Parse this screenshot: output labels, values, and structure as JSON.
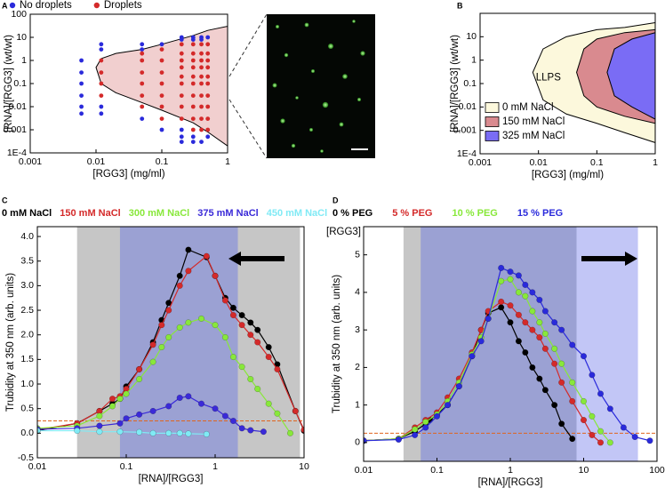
{
  "chart_data": [
    {
      "type": "scatter",
      "label": "A",
      "xlabel": "[RGG3] (mg/ml)",
      "ylabel": "[RNA]/[RGG3] (wt/wt)",
      "xlog": true,
      "ylog": true,
      "xlim": [
        0.001,
        1
      ],
      "ylim": [
        0.0001,
        100
      ],
      "xticks": [
        0.001,
        0.01,
        0.1,
        1
      ],
      "yticks": [
        {
          "value": 0.0001,
          "label": "1E-4"
        },
        0.001,
        0.01,
        0.1,
        1,
        10,
        100
      ],
      "boundary": {
        "color": "#f1cfcf",
        "x": [
          1,
          0.5,
          0.3,
          0.1,
          0.05,
          0.02,
          0.012,
          0.01,
          0.012,
          0.02,
          0.05,
          0.1,
          0.3,
          0.5,
          1
        ],
        "values": [
          30,
          20,
          12,
          5,
          3,
          2,
          1.2,
          0.5,
          0.1,
          0.04,
          0.015,
          0.007,
          0.002,
          0.0008,
          0.0002
        ]
      },
      "series": [
        {
          "name": "No droplets",
          "color": "#2a2adb",
          "x": [
            0.006,
            0.006,
            0.006,
            0.006,
            0.006,
            0.006,
            0.012,
            0.012,
            0.012,
            0.012,
            0.05,
            0.05,
            0.05,
            0.1,
            0.1,
            0.2,
            0.2,
            0.2,
            0.2,
            0.2,
            0.3,
            0.3,
            0.3,
            0.3,
            0.4,
            0.4,
            0.4,
            0.5,
            0.5
          ],
          "values": [
            1,
            0.3,
            0.1,
            0.03,
            0.01,
            0.005,
            5,
            3,
            0.01,
            0.005,
            5,
            3,
            0.003,
            5,
            0.001,
            10,
            8,
            0.001,
            0.0005,
            0.0003,
            10,
            8,
            0.0005,
            0.0003,
            10,
            8,
            0.0003,
            10,
            0.0005
          ]
        },
        {
          "name": "Droplets",
          "color": "#d42a2a",
          "x": [
            0.012,
            0.012,
            0.012,
            0.012,
            0.05,
            0.05,
            0.05,
            0.05,
            0.05,
            0.05,
            0.1,
            0.1,
            0.1,
            0.1,
            0.1,
            0.1,
            0.1,
            0.2,
            0.2,
            0.2,
            0.2,
            0.2,
            0.2,
            0.2,
            0.2,
            0.2,
            0.3,
            0.3,
            0.3,
            0.3,
            0.3,
            0.3,
            0.3,
            0.3,
            0.3,
            0.3,
            0.4,
            0.4,
            0.4,
            0.4,
            0.4,
            0.4,
            0.4,
            0.4,
            0.4,
            0.4,
            0.5,
            0.5,
            0.5,
            0.5,
            0.5,
            0.5,
            0.5,
            0.5,
            0.5,
            0.5
          ],
          "values": [
            1,
            0.3,
            0.1,
            0.03,
            2,
            1,
            0.3,
            0.1,
            0.03,
            0.01,
            3,
            1,
            0.3,
            0.1,
            0.03,
            0.01,
            0.003,
            5,
            2,
            1,
            0.5,
            0.2,
            0.1,
            0.03,
            0.01,
            0.003,
            5,
            2,
            1,
            0.5,
            0.2,
            0.1,
            0.03,
            0.01,
            0.003,
            0.001,
            5,
            2,
            1,
            0.5,
            0.2,
            0.1,
            0.03,
            0.01,
            0.003,
            0.001,
            5,
            2,
            1,
            0.5,
            0.2,
            0.1,
            0.03,
            0.01,
            0.003,
            0.001
          ]
        }
      ]
    },
    {
      "type": "area",
      "label": "B",
      "xlabel": "[RGG3] (mg/ml)",
      "ylabel": "[RNA]/[RGG3] (wt/wt)",
      "annotation": "LLPS",
      "xlog": true,
      "ylog": true,
      "xlim": [
        0.001,
        1
      ],
      "ylim": [
        0.0001,
        100
      ],
      "xticks": [
        0.001,
        0.01,
        0.1,
        1
      ],
      "yticks": [
        {
          "value": 0.0001,
          "label": "1E-4"
        },
        0.001,
        0.01,
        0.1,
        1,
        10
      ],
      "series": [
        {
          "name": "0 mM NaCl",
          "color": "#fcf8dc",
          "x": [
            1,
            0.3,
            0.1,
            0.03,
            0.012,
            0.008,
            0.012,
            0.03,
            0.1,
            0.3,
            1
          ],
          "values": [
            40,
            25,
            20,
            10,
            3,
            0.3,
            0.02,
            0.005,
            0.002,
            0.0008,
            0.0003
          ]
        },
        {
          "name": "150 mM NaCl",
          "color": "#d98a8f",
          "x": [
            1,
            0.3,
            0.1,
            0.06,
            0.045,
            0.06,
            0.1,
            0.3,
            1
          ],
          "values": [
            20,
            15,
            8,
            3,
            0.3,
            0.03,
            0.01,
            0.004,
            0.002
          ]
        },
        {
          "name": "325 mM NaCl",
          "color": "#7a6cf5",
          "x": [
            1,
            0.4,
            0.2,
            0.15,
            0.2,
            0.4,
            1
          ],
          "values": [
            15,
            8,
            3,
            0.3,
            0.03,
            0.01,
            0.003
          ]
        }
      ]
    },
    {
      "type": "line",
      "label": "C",
      "xlabel": "[RNA]/[RGG3]",
      "ylabel": "Trubidity at 350 nm (arb. units)",
      "xlog": true,
      "ylog": false,
      "xlim": [
        0.01,
        10
      ],
      "ylim": [
        -0.5,
        4.2
      ],
      "xticks": [
        0.01,
        0.1,
        1,
        10
      ],
      "yticks": [
        -0.5,
        {
          "value": 0,
          "label": "0.0"
        },
        0.5,
        {
          "value": 1,
          "label": "1.0"
        },
        1.5,
        {
          "value": 2,
          "label": "2.0"
        },
        2.5,
        {
          "value": 3,
          "label": "3.0"
        },
        3.5,
        {
          "value": 4,
          "label": "4.0"
        }
      ],
      "bands": [
        {
          "from": 0.028,
          "to": 9,
          "color": "#c6c6c6"
        },
        {
          "from": 0.085,
          "to": 1.8,
          "color": "#9ba1d3"
        }
      ],
      "threshold": 0.25,
      "arrow": "left",
      "series": [
        {
          "name": "0 mM NaCl",
          "color": "#000000",
          "x": [
            0.01,
            0.028,
            0.05,
            0.07,
            0.085,
            0.1,
            0.14,
            0.2,
            0.25,
            0.3,
            0.4,
            0.5,
            0.8,
            1,
            1.3,
            1.6,
            2,
            2.5,
            3,
            4,
            5,
            8,
            10
          ],
          "values": [
            0.05,
            0.2,
            0.45,
            0.6,
            0.7,
            0.95,
            1.3,
            1.85,
            2.3,
            2.65,
            3.2,
            3.73,
            3.58,
            3.2,
            2.75,
            2.55,
            2.4,
            2.25,
            2.1,
            1.75,
            1.4,
            0.45,
            0.05
          ]
        },
        {
          "name": "150 mM NaCl",
          "color": "#d42a2a",
          "x": [
            0.01,
            0.028,
            0.05,
            0.07,
            0.085,
            0.1,
            0.14,
            0.2,
            0.25,
            0.3,
            0.4,
            0.5,
            0.8,
            1,
            1.3,
            1.6,
            2,
            2.5,
            3,
            4,
            5,
            8,
            10
          ],
          "values": [
            0.07,
            0.2,
            0.45,
            0.7,
            0.75,
            0.9,
            1.3,
            1.8,
            2.2,
            2.5,
            3,
            3.3,
            3.6,
            3.2,
            2.7,
            2.4,
            2.2,
            2,
            1.85,
            1.55,
            1.3,
            0.45,
            0.07
          ]
        },
        {
          "name": "300 mM NaCl",
          "color": "#88e83a",
          "x": [
            0.01,
            0.028,
            0.05,
            0.07,
            0.085,
            0.1,
            0.14,
            0.2,
            0.25,
            0.3,
            0.4,
            0.5,
            0.7,
            1,
            1.3,
            1.6,
            2,
            2.5,
            3,
            4,
            5,
            7
          ],
          "values": [
            0.1,
            0.15,
            0.35,
            0.55,
            0.7,
            0.8,
            1.1,
            1.45,
            1.75,
            1.95,
            2.15,
            2.25,
            2.33,
            2.2,
            1.95,
            1.55,
            1.35,
            1.1,
            0.9,
            0.6,
            0.4,
            0
          ]
        },
        {
          "name": "375 mM NaCl",
          "color": "#3a2ad8",
          "x": [
            0.01,
            0.028,
            0.05,
            0.085,
            0.1,
            0.14,
            0.2,
            0.3,
            0.4,
            0.5,
            0.7,
            1,
            1.3,
            1.6,
            2,
            2.5,
            3.5
          ],
          "values": [
            0.08,
            0.1,
            0.15,
            0.2,
            0.3,
            0.38,
            0.45,
            0.55,
            0.72,
            0.75,
            0.6,
            0.5,
            0.35,
            0.25,
            0.1,
            0.06,
            0.03
          ]
        },
        {
          "name": "450 mM NaCl",
          "color": "#80eaf5",
          "x": [
            0.01,
            0.028,
            0.05,
            0.085,
            0.14,
            0.2,
            0.3,
            0.4,
            0.5,
            0.8
          ],
          "values": [
            0.05,
            0.05,
            0.03,
            0.03,
            0.02,
            0,
            0,
            0,
            -0.01,
            -0.02
          ]
        }
      ]
    },
    {
      "type": "line",
      "label": "D",
      "xlabel": "[RNA]/[RGG3]",
      "ylabel": "Trubidity at 350 nm (arb. units)",
      "annotation": "[RGG3]",
      "xlog": true,
      "ylog": false,
      "xlim": [
        0.01,
        100
      ],
      "ylim": [
        -0.5,
        5.75
      ],
      "xticks": [
        0.01,
        0.1,
        1,
        10,
        100
      ],
      "yticks": [
        0,
        1,
        2,
        3,
        4,
        5
      ],
      "bands": [
        {
          "from": 0.035,
          "to": 8,
          "color": "#c6c6c6"
        },
        {
          "from": 0.06,
          "to": 8,
          "color": "#9ba1d3"
        },
        {
          "from": 8,
          "to": 55,
          "color": "#c2c6f6"
        }
      ],
      "threshold": 0.25,
      "arrow": "right",
      "series": [
        {
          "name": "0 % PEG",
          "color": "#000000",
          "x": [
            0.01,
            0.03,
            0.05,
            0.07,
            0.08,
            0.1,
            0.14,
            0.2,
            0.3,
            0.4,
            0.5,
            0.75,
            1,
            1.3,
            1.6,
            2,
            2.5,
            3,
            4,
            5,
            7
          ],
          "values": [
            0.05,
            0.1,
            0.3,
            0.5,
            0.6,
            0.75,
            1,
            1.5,
            2.3,
            3,
            3.45,
            3.6,
            3.2,
            2.7,
            2.4,
            2,
            1.7,
            1.4,
            1,
            0.5,
            0.1
          ]
        },
        {
          "name": "5 % PEG",
          "color": "#d42a2a",
          "x": [
            0.01,
            0.03,
            0.05,
            0.07,
            0.1,
            0.14,
            0.2,
            0.3,
            0.4,
            0.5,
            0.75,
            1,
            1.3,
            1.6,
            2,
            2.5,
            3,
            4,
            5,
            7,
            10,
            13,
            17
          ],
          "values": [
            0.05,
            0.1,
            0.4,
            0.6,
            0.8,
            1.2,
            1.7,
            2.4,
            3,
            3.5,
            3.75,
            3.65,
            3.4,
            3.2,
            3,
            2.8,
            2.5,
            2.1,
            1.6,
            1.1,
            0.6,
            0.2,
            0
          ]
        },
        {
          "name": "10 % PEG",
          "color": "#88e83a",
          "x": [
            0.01,
            0.03,
            0.05,
            0.07,
            0.1,
            0.14,
            0.2,
            0.3,
            0.4,
            0.5,
            0.75,
            1,
            1.3,
            1.6,
            2,
            2.5,
            3,
            4,
            5,
            7,
            10,
            13,
            17,
            23
          ],
          "values": [
            0.05,
            0.1,
            0.35,
            0.55,
            0.75,
            1.1,
            1.6,
            2.35,
            2.8,
            3.3,
            4.3,
            4.35,
            4,
            3.9,
            3.5,
            3.2,
            2.9,
            2.5,
            2.1,
            1.6,
            1.1,
            0.7,
            0.3,
            0
          ]
        },
        {
          "name": "15 % PEG",
          "color": "#2a2adb",
          "x": [
            0.01,
            0.03,
            0.05,
            0.07,
            0.1,
            0.14,
            0.2,
            0.3,
            0.4,
            0.5,
            0.75,
            1,
            1.3,
            1.6,
            2,
            2.5,
            3,
            4,
            5,
            7,
            10,
            13,
            17,
            23,
            35,
            50,
            80
          ],
          "values": [
            0.05,
            0.08,
            0.2,
            0.4,
            0.7,
            1,
            1.5,
            2.3,
            2.7,
            3.3,
            4.65,
            4.55,
            4.45,
            4.2,
            4,
            3.8,
            3.5,
            3.2,
            3,
            2.6,
            2.3,
            1.8,
            1.3,
            0.9,
            0.4,
            0.15,
            0.05
          ]
        }
      ]
    }
  ]
}
